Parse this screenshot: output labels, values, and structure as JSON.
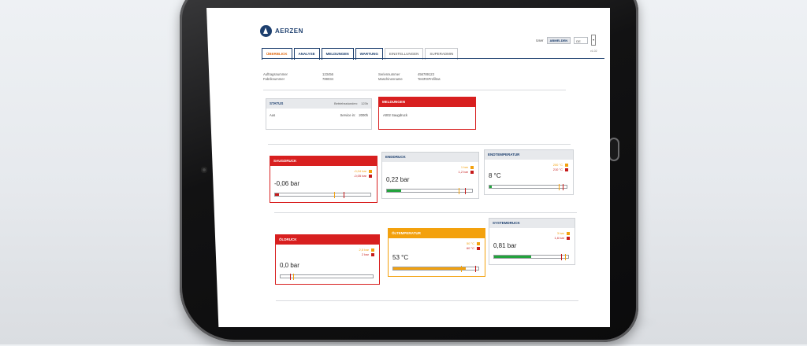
{
  "header": {
    "logo_text": "AERZEN",
    "user_label": "User",
    "logout_label": "ABMELDEN",
    "language": "DE",
    "version": "v1.02"
  },
  "tabs": [
    {
      "label": "ÜBERBLICK",
      "active": true
    },
    {
      "label": "ANALYSE",
      "active": false
    },
    {
      "label": "MELDUNGEN",
      "active": false
    },
    {
      "label": "WARTUNG",
      "active": false
    },
    {
      "label": "EINSTELLUNGEN",
      "active": false
    },
    {
      "label": "SUPERADMIN",
      "active": false
    }
  ],
  "machine_info": {
    "left_labels": [
      "Auftragsnummer",
      "Fabriknummer"
    ],
    "left_values": [
      "123456",
      "789034"
    ],
    "right_labels": [
      "Seriennummer",
      "Maschinenname"
    ],
    "right_values": [
      "456789123",
      "TestRSPrefiltas"
    ]
  },
  "status": {
    "title": "STATUS",
    "operating_hours_label": "Betriebsstunden:",
    "operating_hours_value": "123h",
    "state": "Aus",
    "service_label": "Service in:",
    "service_value": "2000h"
  },
  "messages": {
    "title": "MELDUNGEN",
    "items": [
      "A002 Saugdruck"
    ]
  },
  "gauges": [
    {
      "title": "SAUGDRUCK",
      "state": "alarm",
      "value": "-0,06 bar",
      "warn": "-0,04 bar",
      "alarm": "-0,05 bar",
      "fill": 0.04,
      "warn_pos": 0.62,
      "alarm_pos": 0.72,
      "fill_color": "#c61a1a"
    },
    {
      "title": "ENDDRUCK",
      "state": "normal",
      "value": "0,22 bar",
      "warn": "1 bar",
      "alarm": "1,2 bar",
      "fill": 0.17,
      "warn_pos": 0.84,
      "alarm_pos": 0.92,
      "fill_color": "#22a33c"
    },
    {
      "title": "ENDTEMPERATUR",
      "state": "normal",
      "value": "8 °C",
      "warn": "200 °C",
      "alarm": "210 °C",
      "fill": 0.03,
      "warn_pos": 0.9,
      "alarm_pos": 0.95,
      "fill_color": "#22a33c"
    },
    {
      "title": "ÖLDRUCK",
      "state": "alarm",
      "value": "0,0 bar",
      "warn": "2,5 bar",
      "alarm": "2 bar",
      "fill": 0.0,
      "warn_pos": 0.14,
      "alarm_pos": 0.1,
      "fill_color": "#c61a1a"
    },
    {
      "title": "ÖLTEMPERATUR",
      "state": "warning",
      "value": "53 °C",
      "warn": "50 °C",
      "alarm": "60 °C",
      "fill": 0.85,
      "warn_pos": 0.8,
      "alarm_pos": 0.96,
      "fill_color": "#f3a10d"
    },
    {
      "title": "SYSTEMDRUCK",
      "state": "normal",
      "value": "0,81 bar",
      "warn": "3 bar",
      "alarm": "1,6 bar",
      "fill": 0.5,
      "warn_pos": 0.96,
      "alarm_pos": 0.9,
      "fill_color": "#22a33c"
    }
  ]
}
